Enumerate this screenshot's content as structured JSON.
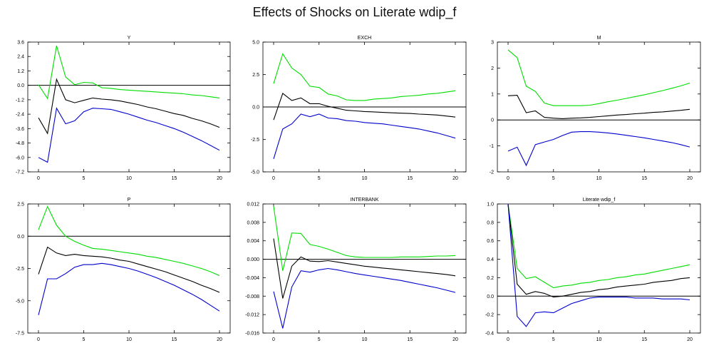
{
  "title": "Effects of Shocks on Literate wdip_f",
  "colors": {
    "upper": "#00dd00",
    "mid": "#000000",
    "lower": "#0000cc",
    "axis": "#000000"
  },
  "chart_data": [
    {
      "type": "line",
      "title": "Y",
      "x": [
        0,
        1,
        2,
        3,
        4,
        5,
        6,
        7,
        8,
        9,
        10,
        11,
        12,
        13,
        14,
        15,
        16,
        17,
        18,
        19,
        20
      ],
      "xticks": [
        0,
        5,
        10,
        15,
        20
      ],
      "xticklabels": [
        "0",
        "5",
        "10",
        "15",
        "20"
      ],
      "ylim": [
        -7.2,
        3.6
      ],
      "yticks": [
        3.6,
        2.4,
        1.2,
        0.0,
        -1.2,
        -2.4,
        -3.6,
        -4.8,
        -6.0,
        -7.2
      ],
      "yticklabels": [
        "3.6",
        "2.4",
        "1.2",
        "0.0",
        "-1.2",
        "-2.4",
        "-3.6",
        "-4.8",
        "-6.0",
        "-7.2"
      ],
      "series": [
        {
          "role": "upper",
          "values": [
            0.05,
            -1.1,
            3.3,
            0.7,
            0.05,
            0.25,
            0.2,
            -0.2,
            -0.25,
            -0.35,
            -0.4,
            -0.45,
            -0.5,
            -0.55,
            -0.6,
            -0.65,
            -0.7,
            -0.8,
            -0.85,
            -0.95,
            -1.05
          ]
        },
        {
          "role": "mid",
          "values": [
            -2.7,
            -4.0,
            0.5,
            -1.2,
            -1.45,
            -1.25,
            -1.05,
            -1.15,
            -1.2,
            -1.3,
            -1.45,
            -1.6,
            -1.8,
            -1.95,
            -2.15,
            -2.35,
            -2.5,
            -2.75,
            -2.95,
            -3.2,
            -3.5
          ]
        },
        {
          "role": "lower",
          "values": [
            -6.0,
            -6.4,
            -1.9,
            -3.2,
            -2.95,
            -2.2,
            -1.9,
            -1.95,
            -2.0,
            -2.2,
            -2.4,
            -2.65,
            -2.9,
            -3.1,
            -3.35,
            -3.6,
            -3.9,
            -4.25,
            -4.6,
            -5.0,
            -5.4
          ]
        }
      ]
    },
    {
      "type": "line",
      "title": "EXCH",
      "x": [
        0,
        1,
        2,
        3,
        4,
        5,
        6,
        7,
        8,
        9,
        10,
        11,
        12,
        13,
        14,
        15,
        16,
        17,
        18,
        19,
        20
      ],
      "xticks": [
        0,
        5,
        10,
        15,
        20
      ],
      "xticklabels": [
        "0",
        "5",
        "10",
        "15",
        "20"
      ],
      "ylim": [
        -5.0,
        5.0
      ],
      "yticks": [
        5.0,
        2.5,
        0.0,
        -2.5,
        -5.0
      ],
      "yticklabels": [
        "5.0",
        "2.5",
        "0.0",
        "-2.5",
        "-5.0"
      ],
      "series": [
        {
          "role": "upper",
          "values": [
            1.8,
            4.1,
            3.0,
            2.5,
            1.6,
            1.5,
            1.0,
            0.85,
            0.55,
            0.5,
            0.5,
            0.6,
            0.65,
            0.7,
            0.8,
            0.85,
            0.9,
            1.0,
            1.05,
            1.15,
            1.25
          ]
        },
        {
          "role": "mid",
          "values": [
            -1.0,
            1.05,
            0.5,
            0.7,
            0.25,
            0.25,
            0.05,
            -0.1,
            -0.25,
            -0.3,
            -0.35,
            -0.38,
            -0.42,
            -0.45,
            -0.48,
            -0.5,
            -0.55,
            -0.58,
            -0.62,
            -0.7,
            -0.78
          ]
        },
        {
          "role": "lower",
          "values": [
            -4.0,
            -1.7,
            -1.3,
            -0.55,
            -0.75,
            -0.55,
            -0.85,
            -0.9,
            -1.05,
            -1.1,
            -1.2,
            -1.25,
            -1.3,
            -1.4,
            -1.5,
            -1.6,
            -1.7,
            -1.85,
            -2.0,
            -2.2,
            -2.4
          ]
        }
      ]
    },
    {
      "type": "line",
      "title": "M",
      "x": [
        0,
        1,
        2,
        3,
        4,
        5,
        6,
        7,
        8,
        9,
        10,
        11,
        12,
        13,
        14,
        15,
        16,
        17,
        18,
        19,
        20
      ],
      "xticks": [
        0,
        5,
        10,
        15,
        20
      ],
      "xticklabels": [
        "0",
        "5",
        "10",
        "15",
        "20"
      ],
      "ylim": [
        -2,
        3
      ],
      "yticks": [
        3,
        2,
        1,
        0,
        -1,
        -2
      ],
      "yticklabels": [
        "3",
        "2",
        "1",
        "0",
        "-1",
        "-2"
      ],
      "series": [
        {
          "role": "upper",
          "values": [
            2.7,
            2.4,
            1.3,
            1.1,
            0.65,
            0.55,
            0.55,
            0.55,
            0.55,
            0.57,
            0.63,
            0.7,
            0.76,
            0.83,
            0.9,
            0.97,
            1.05,
            1.13,
            1.22,
            1.31,
            1.42
          ]
        },
        {
          "role": "mid",
          "values": [
            0.93,
            0.95,
            0.28,
            0.35,
            0.1,
            0.07,
            0.05,
            0.07,
            0.08,
            0.1,
            0.13,
            0.16,
            0.19,
            0.21,
            0.24,
            0.26,
            0.29,
            0.31,
            0.34,
            0.37,
            0.41
          ]
        },
        {
          "role": "lower",
          "values": [
            -1.2,
            -1.05,
            -1.75,
            -0.95,
            -0.85,
            -0.75,
            -0.6,
            -0.47,
            -0.45,
            -0.45,
            -0.47,
            -0.5,
            -0.54,
            -0.59,
            -0.64,
            -0.69,
            -0.75,
            -0.81,
            -0.87,
            -0.95,
            -1.04
          ]
        }
      ]
    },
    {
      "type": "line",
      "title": "P",
      "x": [
        0,
        1,
        2,
        3,
        4,
        5,
        6,
        7,
        8,
        9,
        10,
        11,
        12,
        13,
        14,
        15,
        16,
        17,
        18,
        19,
        20
      ],
      "xticks": [
        0,
        5,
        10,
        15,
        20
      ],
      "xticklabels": [
        "0",
        "5",
        "10",
        "15",
        "20"
      ],
      "ylim": [
        -7.5,
        2.5
      ],
      "yticks": [
        2.5,
        0.0,
        -2.5,
        -5.0,
        -7.5
      ],
      "yticklabels": [
        "2.5",
        "0.0",
        "-2.5",
        "-5.0",
        "-7.5"
      ],
      "series": [
        {
          "role": "upper",
          "values": [
            0.5,
            2.3,
            0.85,
            0.0,
            -0.4,
            -0.7,
            -0.95,
            -1.0,
            -1.1,
            -1.2,
            -1.3,
            -1.4,
            -1.55,
            -1.65,
            -1.8,
            -1.95,
            -2.1,
            -2.3,
            -2.5,
            -2.75,
            -3.05
          ]
        },
        {
          "role": "mid",
          "values": [
            -2.95,
            -0.85,
            -1.3,
            -1.5,
            -1.4,
            -1.5,
            -1.55,
            -1.6,
            -1.7,
            -1.85,
            -1.95,
            -2.15,
            -2.35,
            -2.55,
            -2.75,
            -3.0,
            -3.25,
            -3.5,
            -3.8,
            -4.05,
            -4.35
          ]
        },
        {
          "role": "lower",
          "values": [
            -6.1,
            -3.3,
            -3.3,
            -2.9,
            -2.4,
            -2.2,
            -2.2,
            -2.1,
            -2.2,
            -2.35,
            -2.5,
            -2.7,
            -2.95,
            -3.2,
            -3.5,
            -3.8,
            -4.15,
            -4.5,
            -4.9,
            -5.35,
            -5.8
          ]
        }
      ]
    },
    {
      "type": "line",
      "title": "INTERBANK",
      "x": [
        0,
        1,
        2,
        3,
        4,
        5,
        6,
        7,
        8,
        9,
        10,
        11,
        12,
        13,
        14,
        15,
        16,
        17,
        18,
        19,
        20
      ],
      "xticks": [
        0,
        5,
        10,
        15,
        20
      ],
      "xticklabels": [
        "0",
        "5",
        "10",
        "15",
        "20"
      ],
      "ylim": [
        -0.016,
        0.012
      ],
      "yticks": [
        0.012,
        0.008,
        0.004,
        0.0,
        -0.004,
        -0.008,
        -0.012,
        -0.016
      ],
      "yticklabels": [
        "0.012",
        "0.008",
        "0.004",
        "0.000",
        "-0.004",
        "-0.008",
        "-0.012",
        "-0.016"
      ],
      "series": [
        {
          "role": "upper",
          "values": [
            0.0115,
            -0.0025,
            0.0057,
            0.0056,
            0.0032,
            0.0028,
            0.0022,
            0.0015,
            0.0008,
            0.0005,
            0.0004,
            0.0004,
            0.0004,
            0.0004,
            0.0005,
            0.0005,
            0.0005,
            0.0006,
            0.0007,
            0.0007,
            0.0008
          ]
        },
        {
          "role": "mid",
          "values": [
            0.0045,
            -0.0085,
            -0.0015,
            0.0005,
            -0.0004,
            -0.0005,
            -0.0003,
            -0.0006,
            -0.0009,
            -0.0012,
            -0.0015,
            -0.0017,
            -0.0019,
            -0.0021,
            -0.0023,
            -0.0025,
            -0.0027,
            -0.0029,
            -0.0031,
            -0.0033,
            -0.0036
          ]
        },
        {
          "role": "lower",
          "values": [
            -0.007,
            -0.015,
            -0.006,
            -0.0025,
            -0.0028,
            -0.0023,
            -0.002,
            -0.0023,
            -0.0027,
            -0.0031,
            -0.0034,
            -0.0037,
            -0.004,
            -0.0043,
            -0.0046,
            -0.005,
            -0.0054,
            -0.0058,
            -0.0062,
            -0.0067,
            -0.0072
          ]
        }
      ]
    },
    {
      "type": "line",
      "title": "Literate wdip_f",
      "x": [
        0,
        1,
        2,
        3,
        4,
        5,
        6,
        7,
        8,
        9,
        10,
        11,
        12,
        13,
        14,
        15,
        16,
        17,
        18,
        19,
        20
      ],
      "xticks": [
        0,
        5,
        10,
        15,
        20
      ],
      "xticklabels": [
        "0",
        "5",
        "10",
        "15",
        "20"
      ],
      "ylim": [
        -0.4,
        1.0
      ],
      "yticks": [
        1.0,
        0.8,
        0.6,
        0.4,
        0.2,
        0.0,
        -0.2,
        -0.4
      ],
      "yticklabels": [
        "1.0",
        "0.8",
        "0.6",
        "0.4",
        "0.2",
        "0.0",
        "-0.2",
        "-0.4"
      ],
      "series": [
        {
          "role": "upper",
          "values": [
            1.0,
            0.3,
            0.19,
            0.21,
            0.15,
            0.09,
            0.11,
            0.12,
            0.14,
            0.15,
            0.17,
            0.18,
            0.2,
            0.21,
            0.23,
            0.24,
            0.26,
            0.28,
            0.3,
            0.32,
            0.34
          ]
        },
        {
          "role": "mid",
          "values": [
            1.0,
            0.13,
            0.02,
            0.05,
            0.03,
            -0.01,
            0.0,
            0.02,
            0.04,
            0.05,
            0.07,
            0.08,
            0.1,
            0.11,
            0.12,
            0.13,
            0.15,
            0.16,
            0.17,
            0.19,
            0.2
          ]
        },
        {
          "role": "lower",
          "values": [
            1.0,
            -0.22,
            -0.33,
            -0.18,
            -0.17,
            -0.18,
            -0.13,
            -0.08,
            -0.05,
            -0.02,
            -0.01,
            -0.01,
            -0.01,
            -0.01,
            -0.02,
            -0.02,
            -0.02,
            -0.03,
            -0.03,
            -0.03,
            -0.04
          ]
        }
      ]
    }
  ]
}
